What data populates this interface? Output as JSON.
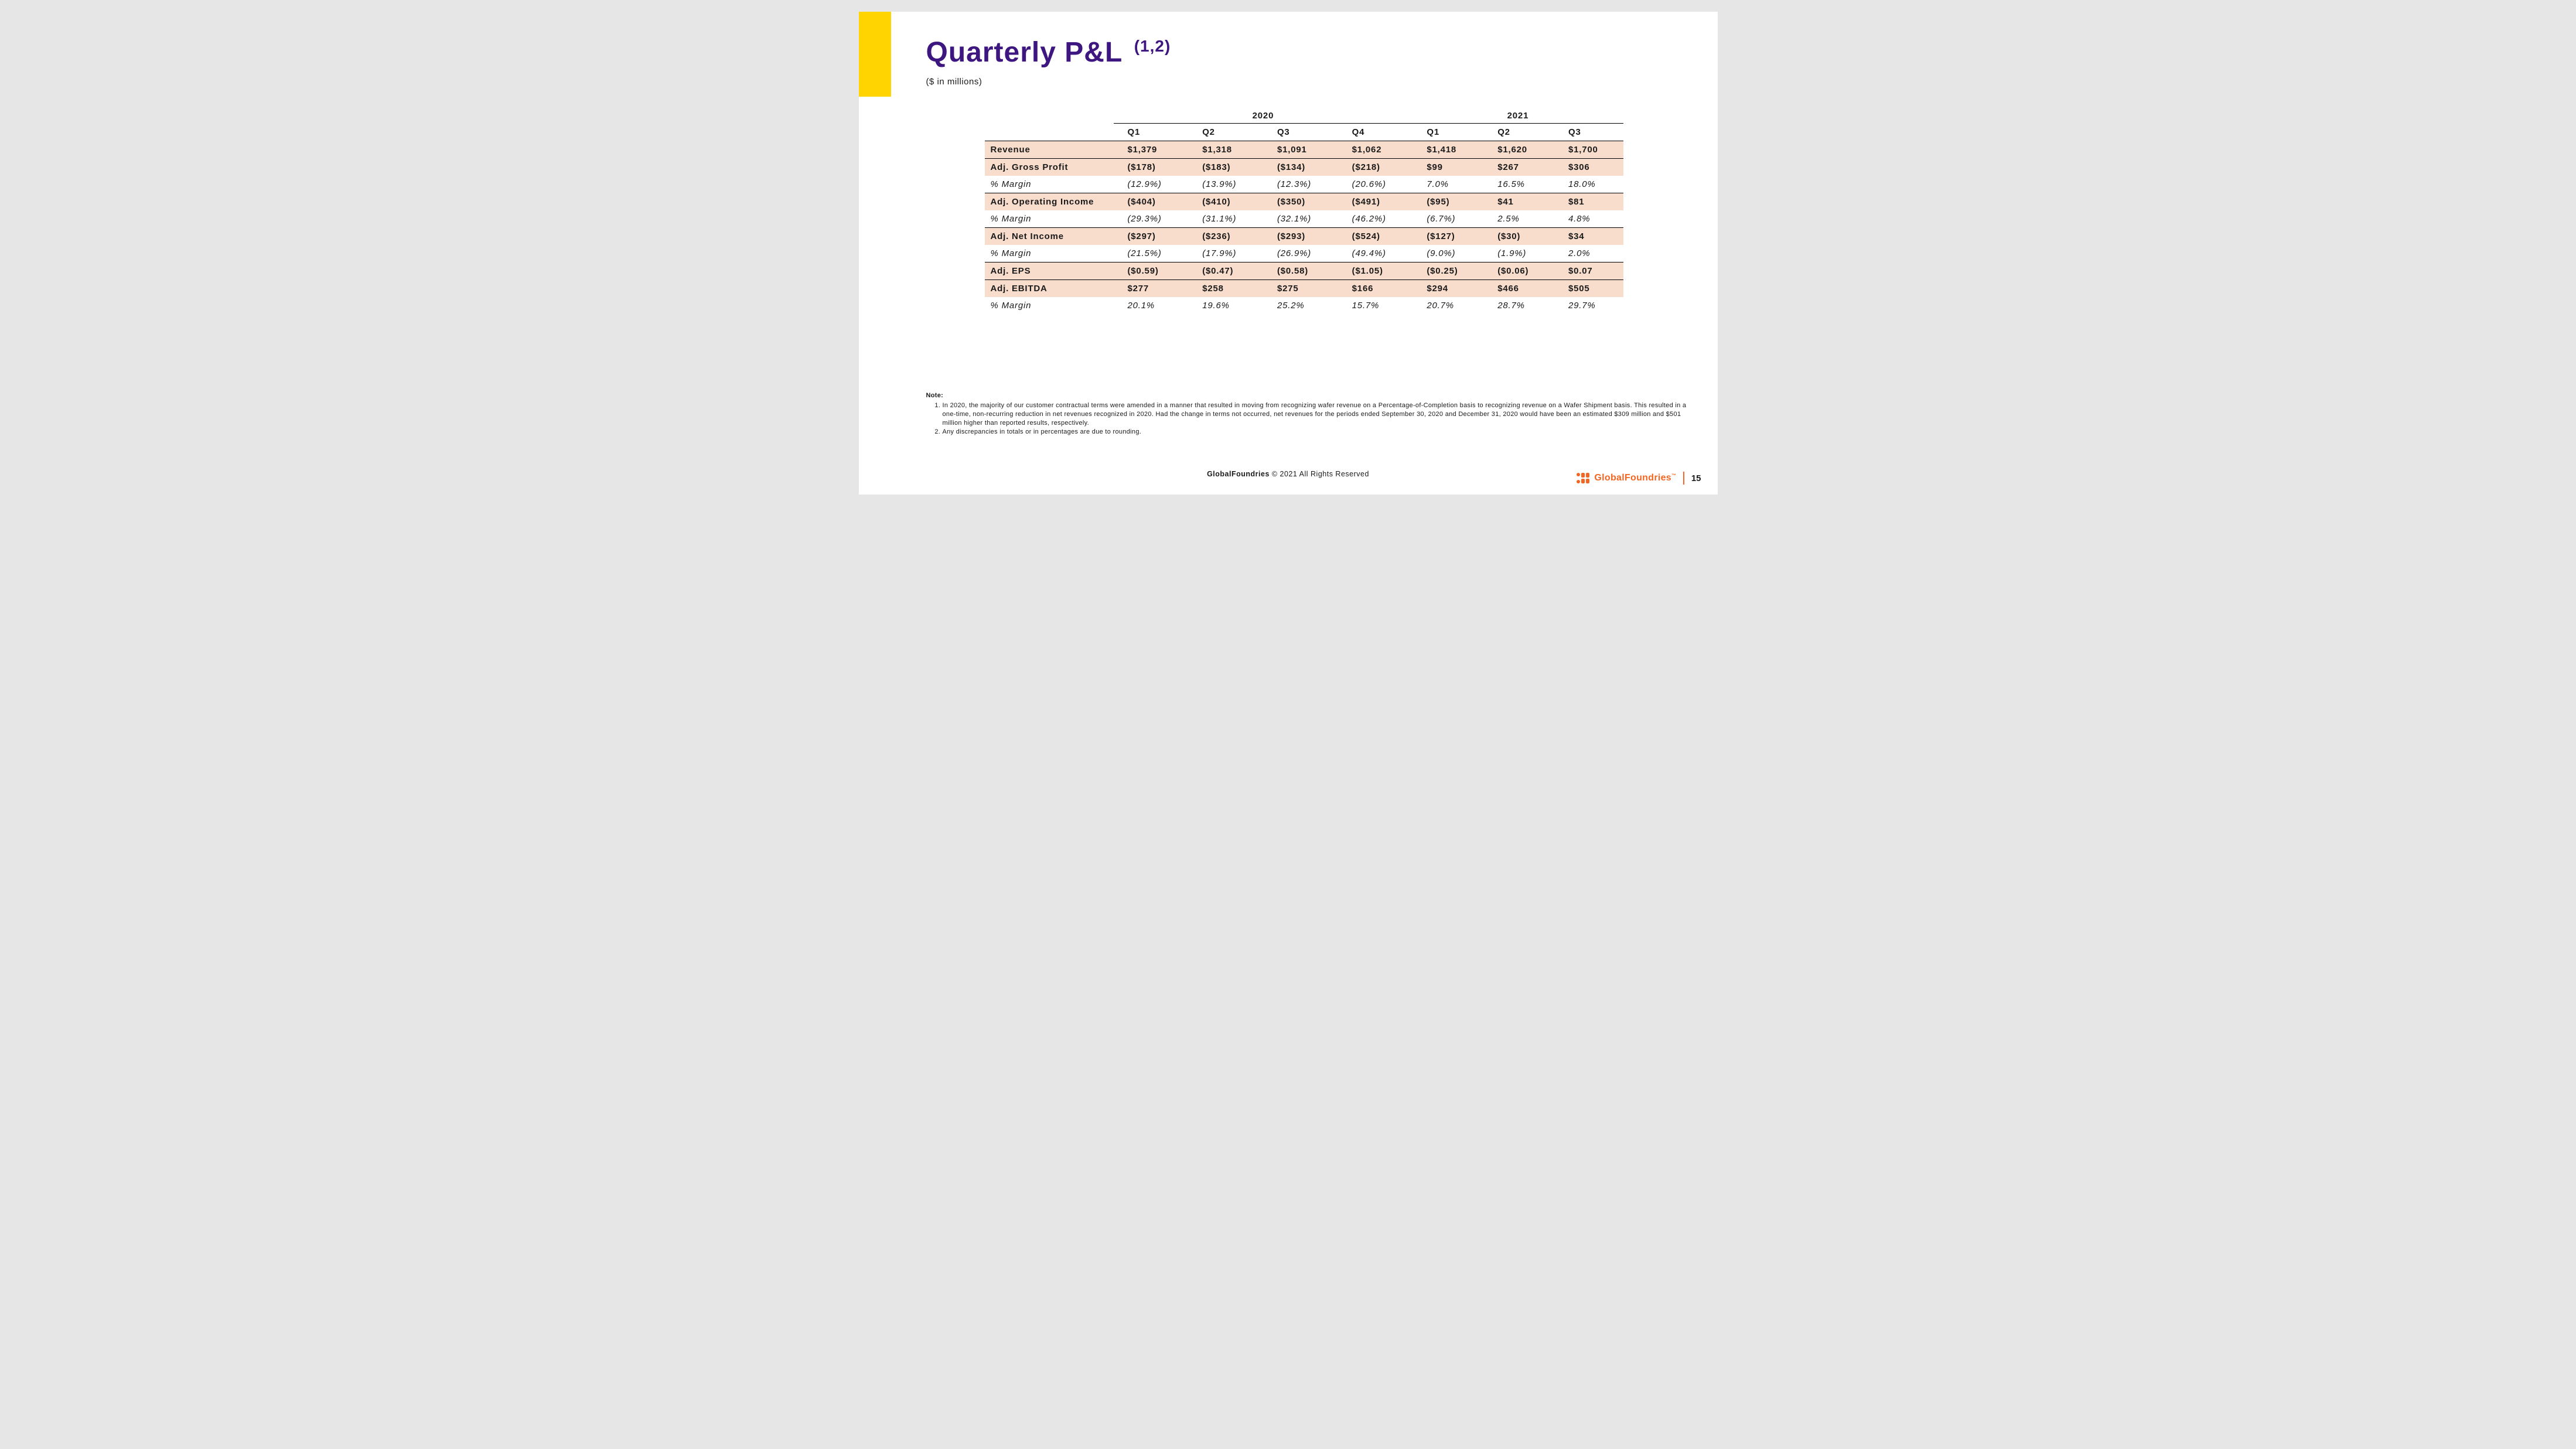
{
  "colors": {
    "accent_bar": "#ffd400",
    "title": "#3d1680",
    "row_highlight": "#f8ddcd",
    "rule": "#000000",
    "bg": "#ffffff",
    "page_bg": "#e6e6e6",
    "logo": "#f26522",
    "text": "#1a1a1a"
  },
  "typography": {
    "title_pt": 48,
    "title_weight": 900,
    "body_pt": 15,
    "note_pt": 11,
    "footer_pt": 12.5,
    "letter_spacing_body": 0.8
  },
  "title": "Quarterly P&L",
  "title_sup": "(1,2)",
  "subtitle": "($ in millions)",
  "table": {
    "years": [
      {
        "label": "2020",
        "span": 4
      },
      {
        "label": "2021",
        "span": 3
      }
    ],
    "quarters": [
      "Q1",
      "Q2",
      "Q3",
      "Q4",
      "Q1",
      "Q2",
      "Q3"
    ],
    "rows": [
      {
        "label": "Revenue",
        "vals": [
          "$1,379",
          "$1,318",
          "$1,091",
          "$1,062",
          "$1,418",
          "$1,620",
          "$1,700"
        ],
        "highlight": true,
        "sep": false
      },
      {
        "label": "Adj. Gross Profit",
        "vals": [
          "($178)",
          "($183)",
          "($134)",
          "($218)",
          "$99",
          "$267",
          "$306"
        ],
        "highlight": true,
        "sep": true
      },
      {
        "label": "% Margin",
        "vals": [
          "(12.9%)",
          "(13.9%)",
          "(12.3%)",
          "(20.6%)",
          "7.0%",
          "16.5%",
          "18.0%"
        ],
        "italic": true
      },
      {
        "label": "Adj. Operating Income",
        "vals": [
          "($404)",
          "($410)",
          "($350)",
          "($491)",
          "($95)",
          "$41",
          "$81"
        ],
        "highlight": true,
        "sep": true
      },
      {
        "label": "% Margin",
        "vals": [
          "(29.3%)",
          "(31.1%)",
          "(32.1%)",
          "(46.2%)",
          "(6.7%)",
          "2.5%",
          "4.8%"
        ],
        "italic": true
      },
      {
        "label": "Adj. Net Income",
        "vals": [
          "($297)",
          "($236)",
          "($293)",
          "($524)",
          "($127)",
          "($30)",
          "$34"
        ],
        "highlight": true,
        "sep": true
      },
      {
        "label": "% Margin",
        "vals": [
          "(21.5%)",
          "(17.9%)",
          "(26.9%)",
          "(49.4%)",
          "(9.0%)",
          "(1.9%)",
          "2.0%"
        ],
        "italic": true
      },
      {
        "label": "Adj. EPS",
        "vals": [
          "($0.59)",
          "($0.47)",
          "($0.58)",
          "($1.05)",
          "($0.25)",
          "($0.06)",
          "$0.07"
        ],
        "highlight": true,
        "sep": true
      },
      {
        "label": "Adj. EBITDA",
        "vals": [
          "$277",
          "$258",
          "$275",
          "$166",
          "$294",
          "$466",
          "$505"
        ],
        "highlight": true,
        "sep": true
      },
      {
        "label": "% Margin",
        "vals": [
          "20.1%",
          "19.6%",
          "25.2%",
          "15.7%",
          "20.7%",
          "28.7%",
          "29.7%"
        ],
        "italic": true
      }
    ]
  },
  "notes": {
    "heading": "Note:",
    "items": [
      "In 2020, the majority of our customer contractual terms were amended in a manner that resulted in moving from recognizing wafer revenue on a Percentage-of-Completion basis to recognizing revenue on a Wafer Shipment basis. This resulted in a one-time, non-recurring reduction in net revenues recognized in 2020. Had the change in terms not occurred, net revenues for the periods ended September 30, 2020 and December 31, 2020 would have been an estimated $309 million and $501 million higher than reported results, respectively.",
      "Any discrepancies in totals or in percentages are due to rounding."
    ]
  },
  "footer": {
    "company_bold": "GlobalFoundries",
    "copyright": " © 2021 All Rights Reserved",
    "logo_text": "GlobalFoundries",
    "page_number": "15"
  }
}
